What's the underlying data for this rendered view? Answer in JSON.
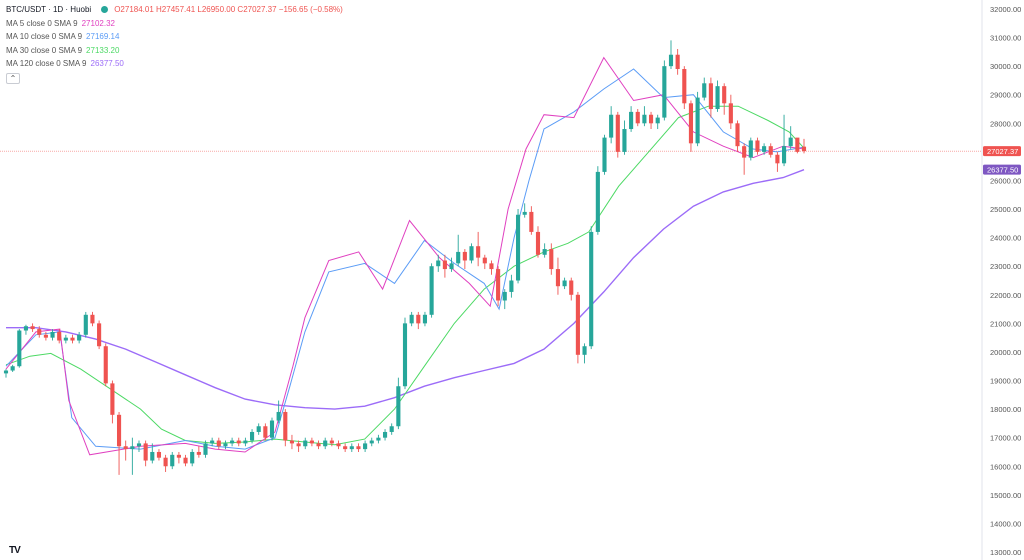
{
  "header": {
    "symbol": "BTC/USDT · 1D · Huobi",
    "ohlc": "O27184.01 H27457.41 L26950.00 C27027.37 −156.65 (−0.58%)",
    "collapse_icon": "chevron-up-icon",
    "status_color": "#26a69a"
  },
  "ma_legend": [
    {
      "label": "MA 5 close 0 SMA 9",
      "value": "27102.32",
      "color": "#e040c0"
    },
    {
      "label": "MA 10 close 0 SMA 9",
      "value": "27169.14",
      "color": "#5b9cf6"
    },
    {
      "label": "MA 30 close 0 SMA 9",
      "value": "27133.20",
      "color": "#4cd964"
    },
    {
      "label": "MA 120 close 0 SMA 9",
      "value": "26377.50",
      "color": "#9c6cf8"
    }
  ],
  "price_badges": {
    "last": {
      "text": "27027.37",
      "value": 27027.37,
      "color": "#ef5350"
    },
    "ma120": {
      "text": "26377.50",
      "value": 26377.5,
      "color": "#7e57c2"
    }
  },
  "logo": "TV",
  "chart_data": {
    "type": "candlestick",
    "y_axis_labels": [
      "32000.00",
      "31000.00",
      "30000.00",
      "29000.00",
      "28000.00",
      "27000.00",
      "26000.00",
      "25000.00",
      "24000.00",
      "23000.00",
      "22000.00",
      "21000.00",
      "20000.00",
      "19000.00",
      "18000.00",
      "17000.00",
      "16000.00",
      "15000.00",
      "14000.00",
      "13000.00"
    ],
    "ylim": [
      13000,
      32000
    ],
    "colors": {
      "up": "#26a69a",
      "down": "#ef5350"
    },
    "ma120_path": [
      [
        0,
        20850
      ],
      [
        10,
        20850
      ],
      [
        20,
        20700
      ],
      [
        30,
        20450
      ],
      [
        40,
        20100
      ],
      [
        50,
        19650
      ],
      [
        60,
        19200
      ],
      [
        70,
        18750
      ],
      [
        80,
        18350
      ],
      [
        90,
        18150
      ],
      [
        100,
        18050
      ],
      [
        110,
        18000
      ],
      [
        120,
        18100
      ],
      [
        130,
        18400
      ],
      [
        140,
        18800
      ],
      [
        150,
        19100
      ],
      [
        160,
        19350
      ],
      [
        170,
        19600
      ],
      [
        180,
        20100
      ],
      [
        190,
        21000
      ],
      [
        200,
        22100
      ],
      [
        210,
        23300
      ],
      [
        220,
        24300
      ],
      [
        230,
        25100
      ],
      [
        240,
        25600
      ],
      [
        250,
        25900
      ],
      [
        260,
        26100
      ],
      [
        267,
        26377.5
      ]
    ],
    "ma30_path": [
      [
        0,
        19550
      ],
      [
        8,
        19850
      ],
      [
        15,
        19950
      ],
      [
        25,
        19400
      ],
      [
        35,
        18700
      ],
      [
        45,
        18000
      ],
      [
        52,
        17300
      ],
      [
        60,
        16900
      ],
      [
        70,
        16800
      ],
      [
        80,
        16850
      ],
      [
        90,
        16950
      ],
      [
        100,
        16850
      ],
      [
        110,
        16750
      ],
      [
        120,
        16950
      ],
      [
        130,
        18000
      ],
      [
        140,
        19500
      ],
      [
        150,
        21000
      ],
      [
        160,
        22200
      ],
      [
        170,
        23000
      ],
      [
        180,
        23500
      ],
      [
        188,
        23800
      ],
      [
        195,
        24200
      ],
      [
        205,
        25800
      ],
      [
        215,
        27000
      ],
      [
        225,
        28200
      ],
      [
        235,
        28600
      ],
      [
        245,
        28600
      ],
      [
        255,
        28100
      ],
      [
        262,
        27700
      ],
      [
        267,
        27133.2
      ]
    ],
    "ma10_path": [
      [
        0,
        19500
      ],
      [
        10,
        20600
      ],
      [
        18,
        20700
      ],
      [
        22,
        17700
      ],
      [
        30,
        16700
      ],
      [
        45,
        16600
      ],
      [
        60,
        16900
      ],
      [
        70,
        16700
      ],
      [
        80,
        16600
      ],
      [
        90,
        17000
      ],
      [
        95,
        18800
      ],
      [
        100,
        20700
      ],
      [
        108,
        22800
      ],
      [
        120,
        23100
      ],
      [
        130,
        22400
      ],
      [
        140,
        23900
      ],
      [
        150,
        23100
      ],
      [
        160,
        22400
      ],
      [
        165,
        21500
      ],
      [
        170,
        24000
      ],
      [
        175,
        26000
      ],
      [
        180,
        27800
      ],
      [
        190,
        28400
      ],
      [
        200,
        29200
      ],
      [
        210,
        29900
      ],
      [
        220,
        28900
      ],
      [
        230,
        29000
      ],
      [
        240,
        27700
      ],
      [
        250,
        27100
      ],
      [
        258,
        27000
      ],
      [
        267,
        27169.14
      ]
    ],
    "ma5_path": [
      [
        0,
        19400
      ],
      [
        10,
        20700
      ],
      [
        18,
        20800
      ],
      [
        21,
        18300
      ],
      [
        28,
        16400
      ],
      [
        45,
        16700
      ],
      [
        60,
        16800
      ],
      [
        70,
        16600
      ],
      [
        80,
        16500
      ],
      [
        90,
        17200
      ],
      [
        96,
        19500
      ],
      [
        100,
        21200
      ],
      [
        108,
        23200
      ],
      [
        118,
        23500
      ],
      [
        126,
        22200
      ],
      [
        135,
        24600
      ],
      [
        145,
        23300
      ],
      [
        155,
        22400
      ],
      [
        162,
        21600
      ],
      [
        168,
        25000
      ],
      [
        174,
        27100
      ],
      [
        180,
        28300
      ],
      [
        190,
        28200
      ],
      [
        200,
        30300
      ],
      [
        210,
        28800
      ],
      [
        220,
        29000
      ],
      [
        230,
        27700
      ],
      [
        240,
        27200
      ],
      [
        250,
        26800
      ],
      [
        260,
        27200
      ],
      [
        267,
        27102.32
      ]
    ],
    "candles": [
      [
        0,
        19250,
        19350,
        19100,
        19400
      ],
      [
        1,
        19350,
        19500,
        19300,
        19550
      ],
      [
        2,
        19500,
        20750,
        19450,
        20800
      ],
      [
        3,
        20750,
        20900,
        20600,
        20950
      ],
      [
        4,
        20900,
        20800,
        20700,
        21000
      ],
      [
        5,
        20800,
        20600,
        20500,
        20900
      ],
      [
        6,
        20600,
        20500,
        20400,
        20700
      ],
      [
        7,
        20500,
        20700,
        20400,
        20800
      ],
      [
        8,
        20700,
        20400,
        20300,
        20800
      ],
      [
        9,
        20400,
        20500,
        20300,
        20600
      ],
      [
        10,
        20500,
        20400,
        20300,
        20600
      ],
      [
        11,
        20400,
        20600,
        20300,
        20700
      ],
      [
        12,
        20600,
        21300,
        20500,
        21400
      ],
      [
        13,
        21300,
        21000,
        20900,
        21400
      ],
      [
        14,
        21000,
        20200,
        20100,
        21100
      ],
      [
        15,
        20200,
        18900,
        18800,
        20300
      ],
      [
        16,
        18900,
        17800,
        17500,
        19000
      ],
      [
        17,
        17800,
        16700,
        15700,
        17900
      ],
      [
        18,
        16700,
        16600,
        16200,
        16900
      ],
      [
        19,
        16600,
        16700,
        15700,
        17000
      ],
      [
        20,
        16700,
        16800,
        16500,
        16900
      ],
      [
        21,
        16800,
        16200,
        16000,
        16900
      ],
      [
        22,
        16200,
        16500,
        16100,
        16800
      ],
      [
        23,
        16500,
        16300,
        16200,
        16600
      ],
      [
        24,
        16300,
        16000,
        15800,
        16400
      ],
      [
        25,
        16000,
        16400,
        15900,
        16500
      ],
      [
        26,
        16400,
        16300,
        16100,
        16500
      ],
      [
        27,
        16300,
        16100,
        16000,
        16400
      ],
      [
        28,
        16100,
        16500,
        16000,
        16600
      ],
      [
        29,
        16500,
        16400,
        16300,
        16700
      ],
      [
        30,
        16400,
        16800,
        16300,
        16900
      ],
      [
        31,
        16800,
        16900,
        16700,
        17000
      ],
      [
        32,
        16900,
        16700,
        16600,
        17000
      ],
      [
        33,
        16700,
        16800,
        16600,
        16900
      ],
      [
        34,
        16800,
        16900,
        16700,
        17000
      ],
      [
        35,
        16900,
        16800,
        16700,
        17000
      ],
      [
        36,
        16800,
        16900,
        16700,
        17000
      ],
      [
        37,
        16900,
        17200,
        16800,
        17300
      ],
      [
        38,
        17200,
        17400,
        17100,
        17500
      ],
      [
        39,
        17400,
        17000,
        16900,
        17500
      ],
      [
        40,
        17000,
        17600,
        16900,
        17700
      ],
      [
        41,
        17600,
        17900,
        17500,
        18300
      ],
      [
        42,
        17900,
        16900,
        16700,
        18000
      ],
      [
        43,
        16900,
        16800,
        16600,
        17100
      ],
      [
        44,
        16800,
        16700,
        16500,
        16900
      ],
      [
        45,
        16700,
        16900,
        16600,
        17000
      ],
      [
        46,
        16900,
        16800,
        16700,
        17000
      ],
      [
        47,
        16800,
        16700,
        16600,
        16900
      ],
      [
        48,
        16700,
        16900,
        16600,
        17000
      ],
      [
        49,
        16900,
        16800,
        16700,
        17000
      ],
      [
        50,
        16800,
        16700,
        16600,
        16900
      ],
      [
        51,
        16700,
        16600,
        16500,
        16800
      ],
      [
        52,
        16600,
        16700,
        16500,
        16800
      ],
      [
        53,
        16700,
        16600,
        16500,
        16800
      ],
      [
        54,
        16600,
        16800,
        16500,
        16900
      ],
      [
        55,
        16800,
        16900,
        16700,
        17000
      ],
      [
        56,
        16900,
        17000,
        16800,
        17100
      ],
      [
        57,
        17000,
        17200,
        16900,
        17300
      ],
      [
        58,
        17200,
        17400,
        17100,
        17500
      ],
      [
        59,
        17400,
        18800,
        17300,
        19100
      ],
      [
        60,
        18800,
        21000,
        18700,
        21200
      ],
      [
        61,
        21000,
        21300,
        20900,
        21400
      ],
      [
        62,
        21300,
        21000,
        20800,
        21400
      ],
      [
        63,
        21000,
        21300,
        20900,
        21400
      ],
      [
        64,
        21300,
        23000,
        21200,
        23100
      ],
      [
        65,
        23000,
        23200,
        22800,
        23400
      ],
      [
        66,
        23200,
        22900,
        22600,
        23400
      ],
      [
        67,
        22900,
        23100,
        22800,
        23300
      ],
      [
        68,
        23100,
        23500,
        23000,
        24100
      ],
      [
        69,
        23500,
        23200,
        22900,
        23600
      ],
      [
        70,
        23200,
        23700,
        23100,
        23800
      ],
      [
        71,
        23700,
        23300,
        23000,
        24200
      ],
      [
        72,
        23300,
        23100,
        22900,
        23400
      ],
      [
        73,
        23100,
        22900,
        22700,
        23200
      ],
      [
        74,
        22900,
        21800,
        21600,
        23000
      ],
      [
        75,
        21800,
        22100,
        21500,
        22200
      ],
      [
        76,
        22100,
        22500,
        21900,
        22700
      ],
      [
        77,
        22500,
        24800,
        22400,
        25000
      ],
      [
        78,
        24800,
        24900,
        24700,
        25200
      ],
      [
        79,
        24900,
        24200,
        24100,
        25100
      ],
      [
        80,
        24200,
        23400,
        23300,
        24400
      ],
      [
        81,
        23400,
        23600,
        23300,
        23800
      ],
      [
        82,
        23600,
        22900,
        22700,
        23800
      ],
      [
        83,
        22900,
        22300,
        22000,
        23300
      ],
      [
        84,
        22300,
        22500,
        22200,
        22600
      ],
      [
        85,
        22500,
        22000,
        21800,
        22600
      ],
      [
        86,
        22000,
        19900,
        19600,
        22100
      ],
      [
        87,
        19900,
        20200,
        19600,
        20300
      ],
      [
        88,
        20200,
        24200,
        20100,
        24400
      ],
      [
        89,
        24200,
        26300,
        24100,
        26500
      ],
      [
        90,
        26300,
        27500,
        26200,
        27600
      ],
      [
        91,
        27500,
        28300,
        27300,
        28600
      ],
      [
        92,
        28300,
        27000,
        26800,
        28400
      ],
      [
        93,
        27000,
        27800,
        26900,
        28100
      ],
      [
        94,
        27800,
        28400,
        27700,
        28600
      ],
      [
        95,
        28400,
        28000,
        27900,
        28500
      ],
      [
        96,
        28000,
        28300,
        27900,
        28600
      ],
      [
        97,
        28300,
        28000,
        27800,
        28400
      ],
      [
        98,
        28000,
        28200,
        27800,
        28300
      ],
      [
        99,
        28200,
        30000,
        28100,
        30200
      ],
      [
        100,
        30000,
        30400,
        29900,
        30900
      ],
      [
        101,
        30400,
        29900,
        29700,
        30600
      ],
      [
        102,
        29900,
        28700,
        28500,
        30000
      ],
      [
        103,
        28700,
        27300,
        27000,
        28800
      ],
      [
        104,
        27300,
        28900,
        27200,
        29100
      ],
      [
        105,
        28900,
        29400,
        28800,
        29600
      ],
      [
        106,
        29400,
        28500,
        28200,
        29600
      ],
      [
        107,
        28500,
        29300,
        28400,
        29500
      ],
      [
        108,
        29300,
        28700,
        28300,
        29400
      ],
      [
        109,
        28700,
        28000,
        27800,
        29000
      ],
      [
        110,
        28000,
        27200,
        27000,
        28100
      ],
      [
        111,
        27200,
        26800,
        26200,
        27300
      ],
      [
        112,
        26800,
        27400,
        26700,
        27500
      ],
      [
        113,
        27400,
        27000,
        26900,
        27500
      ],
      [
        114,
        27000,
        27200,
        26900,
        27300
      ],
      [
        115,
        27200,
        26900,
        26800,
        27300
      ],
      [
        116,
        26900,
        26600,
        26300,
        27000
      ],
      [
        117,
        26600,
        27200,
        26500,
        28300
      ],
      [
        118,
        27200,
        27500,
        27100,
        27900
      ],
      [
        119,
        27500,
        27000,
        26950,
        27460
      ],
      [
        120,
        27184.01,
        27027.37,
        26950,
        27457.41
      ]
    ]
  }
}
